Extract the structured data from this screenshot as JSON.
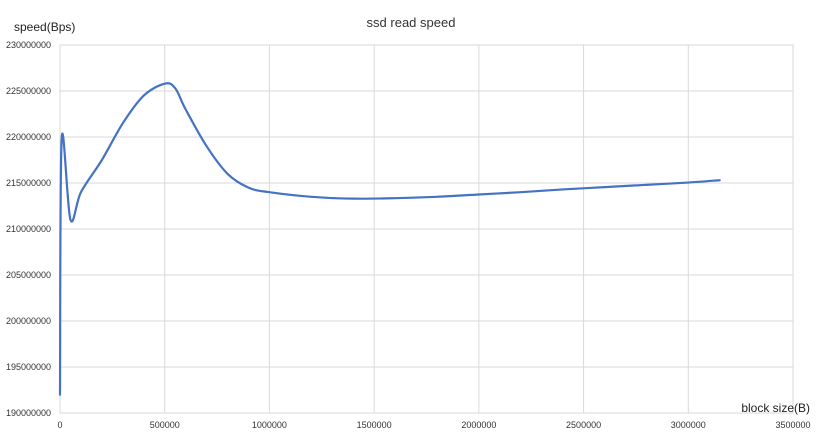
{
  "chart_data": {
    "type": "line",
    "title": "ssd read speed",
    "xlabel": "block size(B)",
    "ylabel": "speed(Bps)",
    "xlim": [
      0,
      3500000
    ],
    "ylim": [
      190000000,
      230000000
    ],
    "x_ticks": [
      "0",
      "500000",
      "1000000",
      "1500000",
      "2000000",
      "2500000",
      "3000000",
      "3500000"
    ],
    "y_ticks": [
      "190000000",
      "195000000",
      "200000000",
      "205000000",
      "210000000",
      "215000000",
      "220000000",
      "225000000",
      "230000000"
    ],
    "grid": true,
    "legend": "none",
    "series": [
      {
        "color": "#4472c4",
        "x": [
          0,
          8000,
          50000,
          100000,
          200000,
          300000,
          400000,
          500000,
          550000,
          600000,
          700000,
          800000,
          900000,
          1000000,
          1200000,
          1400000,
          1600000,
          1800000,
          2000000,
          2200000,
          2400000,
          2600000,
          2800000,
          3000000,
          3150000
        ],
        "y": [
          192000000,
          219800000,
          211000000,
          214000000,
          217500000,
          221500000,
          224500000,
          225800000,
          225300000,
          223000000,
          219000000,
          216000000,
          214500000,
          214000000,
          213500000,
          213300000,
          213350000,
          213500000,
          213750000,
          214000000,
          214300000,
          214550000,
          214800000,
          215050000,
          215300000
        ]
      }
    ]
  }
}
